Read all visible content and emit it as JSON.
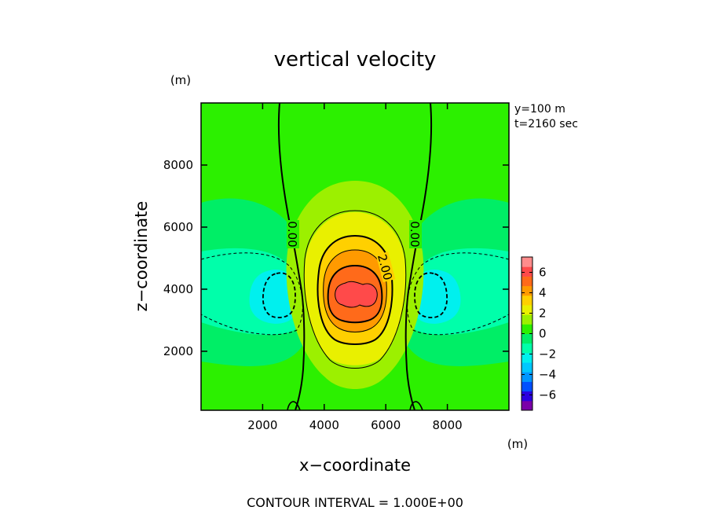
{
  "chart_data": {
    "type": "heatmap",
    "title": "vertical velocity",
    "xlabel": "x−coordinate",
    "ylabel": "z−coordinate",
    "x_unit": "(m)",
    "y_unit": "(m)",
    "annotations": [
      "y=100  m",
      "t=2160 sec"
    ],
    "footer": "CONTOUR INTERVAL =  1.000E+00",
    "xlim": [
      0,
      10000
    ],
    "ylim": [
      100,
      10000
    ],
    "xticks": [
      2000,
      4000,
      6000,
      8000
    ],
    "yticks": [
      2000,
      4000,
      6000,
      8000
    ],
    "xtick_labels": [
      "2000",
      "4000",
      "6000",
      "8000"
    ],
    "ytick_labels": [
      "2000",
      "4000",
      "6000",
      "8000"
    ],
    "contour_labels": [
      "0.00",
      "0.00",
      "2.00"
    ],
    "colorbar": {
      "min": -7.5,
      "max": 7.5,
      "ticks": [
        6,
        4,
        2,
        0,
        -2,
        -4,
        -6
      ],
      "tick_labels": [
        "6",
        "4",
        "2",
        "0",
        "−2",
        "−4",
        "−6"
      ],
      "colors": [
        "#7a00a8",
        "#2a00e0",
        "#0050ff",
        "#0096ff",
        "#00c8ff",
        "#00f0ee",
        "#00ffaa",
        "#00ee66",
        "#2cf000",
        "#9cf000",
        "#e9f000",
        "#ffd000",
        "#ff9a00",
        "#ff6a1a",
        "#ff4a4a",
        "#ff8c8c"
      ]
    },
    "fill_colors": {
      "background": "#2cf000",
      "level_0_1": "#9cf000",
      "level_1_2": "#e9f000",
      "level_2_3": "#ffd000",
      "level_3_4": "#ff9a00",
      "level_4_5": "#ff6a1a",
      "level_5_6": "#ff4a4a",
      "level_neg1_0": "#00ee66",
      "level_neg2_neg1": "#00ffaa",
      "level_neg3_neg2": "#00f0ee"
    },
    "updraft_center": {
      "x": 5000,
      "z": 3800,
      "max": 5.5
    },
    "downdraft_centers": [
      {
        "x": 2500,
        "z": 3800,
        "min": -2.5
      },
      {
        "x": 7500,
        "z": 3800,
        "min": -2.5
      }
    ]
  }
}
